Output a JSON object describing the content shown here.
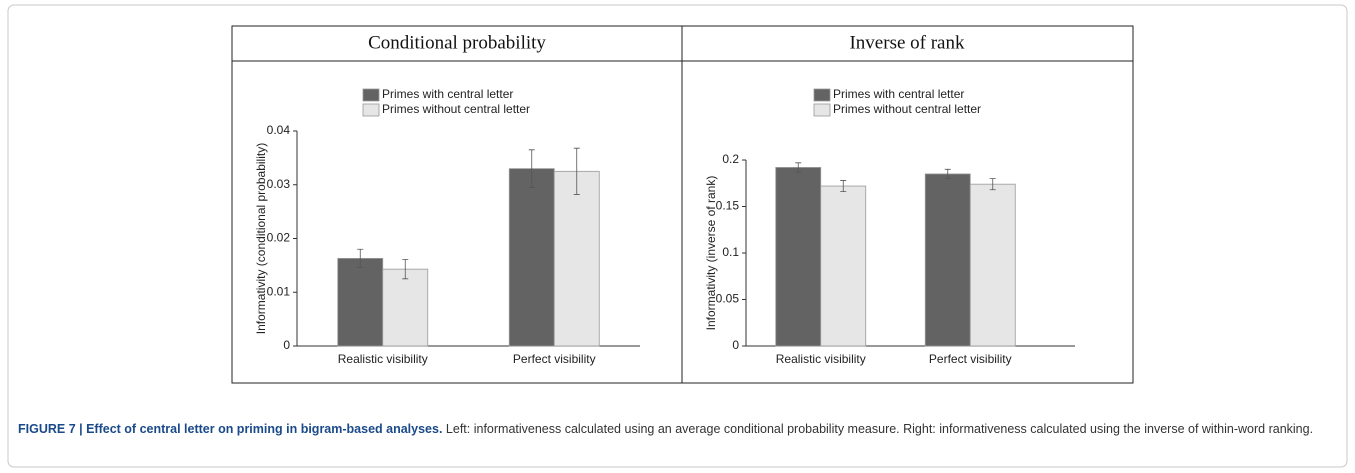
{
  "chart_data": [
    {
      "type": "bar",
      "title": "Conditional probability",
      "y_label": "Informativity (conditional probability)",
      "categories": [
        "Realistic visibility",
        "Perfect visibility"
      ],
      "series": [
        {
          "name": "Primes with central letter",
          "color": "#636363",
          "values": [
            0.0163,
            0.033
          ],
          "errors": [
            0.0017,
            0.0035
          ]
        },
        {
          "name": "Primes without central letter",
          "color": "#e6e6e6",
          "values": [
            0.0143,
            0.0325
          ],
          "errors": [
            0.0018,
            0.0043
          ]
        }
      ],
      "ylim": [
        0,
        0.04
      ],
      "yticks": [
        0,
        0.01,
        0.02,
        0.03,
        0.04
      ]
    },
    {
      "type": "bar",
      "title": "Inverse of rank",
      "y_label": "Informativity (inverse of rank)",
      "categories": [
        "Realistic visibility",
        "Perfect visibility"
      ],
      "series": [
        {
          "name": "Primes with central letter",
          "color": "#636363",
          "values": [
            0.192,
            0.185
          ],
          "errors": [
            0.005,
            0.005
          ]
        },
        {
          "name": "Primes without central letter",
          "color": "#e6e6e6",
          "values": [
            0.172,
            0.174
          ],
          "errors": [
            0.006,
            0.006
          ]
        }
      ],
      "ylim": [
        0,
        0.2
      ],
      "yticks": [
        0,
        0.05,
        0.1,
        0.15,
        0.2
      ]
    }
  ],
  "caption": {
    "label": "FIGURE 7 | Effect of central letter on priming in bigram-based analyses.",
    "text": "Left: informativeness calculated using an average conditional probability measure. Right: informativeness calculated using the inverse of within-word ranking."
  }
}
